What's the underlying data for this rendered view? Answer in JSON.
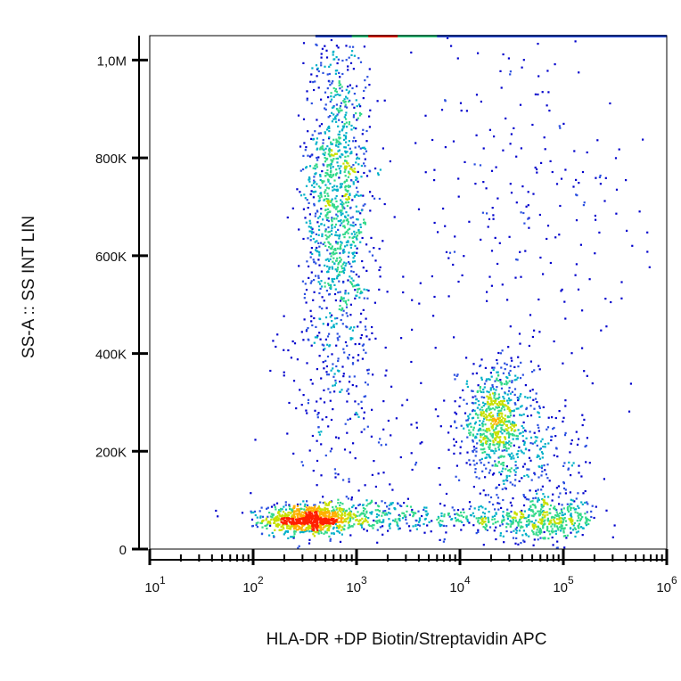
{
  "chart_data": {
    "type": "scatter",
    "subtype": "flow-cytometry density dot plot",
    "xlabel": "HLA-DR +DP Biotin/Streptavidin APC",
    "ylabel": "SS-A :: SS INT LIN",
    "x_scale": "log",
    "xlim": [
      10,
      1000000
    ],
    "y_scale": "linear",
    "ylim": [
      0,
      1050000
    ],
    "x_ticks": [
      {
        "value": 10,
        "base": "10",
        "exp": "1"
      },
      {
        "value": 100,
        "base": "10",
        "exp": "2"
      },
      {
        "value": 1000,
        "base": "10",
        "exp": "3"
      },
      {
        "value": 10000,
        "base": "10",
        "exp": "4"
      },
      {
        "value": 100000,
        "base": "10",
        "exp": "5"
      },
      {
        "value": 1000000,
        "base": "10",
        "exp": "6"
      }
    ],
    "y_ticks": [
      {
        "value": 0,
        "label": "0"
      },
      {
        "value": 200000,
        "label": "200K"
      },
      {
        "value": 400000,
        "label": "400K"
      },
      {
        "value": 600000,
        "label": "600K"
      },
      {
        "value": 800000,
        "label": "800K"
      },
      {
        "value": 1000000,
        "label": "1,0M"
      }
    ],
    "grid": false,
    "legend": "none",
    "density_colors": [
      "#0000cc",
      "#2a4fe0",
      "#00b0c8",
      "#33d98a",
      "#c8e000",
      "#ffb000",
      "#ff2000"
    ],
    "populations": [
      {
        "x_center": 350,
        "y_center": 60000,
        "x_spread_decades": 0.22,
        "y_spread": 15000,
        "count": 850
      },
      {
        "x_center": 1400,
        "y_center": 70000,
        "x_spread_decades": 0.4,
        "y_spread": 18000,
        "count": 240
      },
      {
        "x_center": 650,
        "y_center": 720000,
        "x_spread_decades": 0.16,
        "y_spread": 170000,
        "count": 1150
      },
      {
        "x_center": 22000,
        "y_center": 260000,
        "x_spread_decades": 0.18,
        "y_spread": 55000,
        "count": 650
      },
      {
        "x_center": 70000,
        "y_center": 60000,
        "x_spread_decades": 0.25,
        "y_spread": 22000,
        "count": 350
      },
      {
        "x_center": 50000,
        "y_center": 170000,
        "x_spread_decades": 0.3,
        "y_spread": 70000,
        "count": 220
      },
      {
        "x_center": 20000,
        "y_center": 60000,
        "x_spread_decades": 0.35,
        "y_spread": 15000,
        "count": 180
      },
      {
        "x_center": 800,
        "y_center": 300000,
        "x_spread_decades": 0.35,
        "y_spread": 150000,
        "count": 220
      },
      {
        "x_center": 40000,
        "y_center": 650000,
        "x_spread_decades": 0.6,
        "y_spread": 250000,
        "count": 280
      }
    ],
    "saturated_top_band": {
      "x_range": [
        400,
        1000000
      ],
      "y": 1050000
    }
  }
}
